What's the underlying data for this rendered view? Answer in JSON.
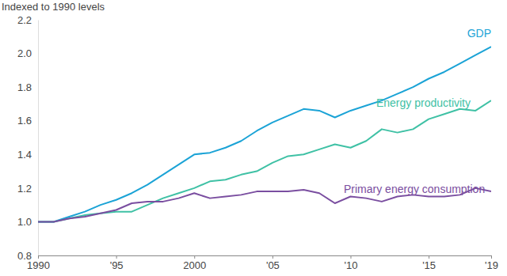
{
  "chart_data": {
    "type": "line",
    "y_label": "Indexed to 1990 levels",
    "x": [
      1990,
      1991,
      1992,
      1993,
      1994,
      1995,
      1996,
      1997,
      1998,
      1999,
      2000,
      2001,
      2002,
      2003,
      2004,
      2005,
      2006,
      2007,
      2008,
      2009,
      2010,
      2011,
      2012,
      2013,
      2014,
      2015,
      2016,
      2017,
      2018,
      2019
    ],
    "series": [
      {
        "name": "GDP",
        "color": "#1ba3d6",
        "values": [
          1.0,
          1.0,
          1.03,
          1.06,
          1.1,
          1.13,
          1.17,
          1.22,
          1.28,
          1.34,
          1.4,
          1.41,
          1.44,
          1.48,
          1.54,
          1.59,
          1.63,
          1.67,
          1.66,
          1.62,
          1.66,
          1.69,
          1.72,
          1.76,
          1.8,
          1.85,
          1.89,
          1.94,
          1.99,
          2.04
        ]
      },
      {
        "name": "Energy productivity",
        "color": "#3fc1a5",
        "values": [
          1.0,
          1.0,
          1.02,
          1.04,
          1.05,
          1.06,
          1.06,
          1.1,
          1.14,
          1.17,
          1.2,
          1.24,
          1.25,
          1.28,
          1.3,
          1.35,
          1.39,
          1.4,
          1.43,
          1.46,
          1.44,
          1.48,
          1.55,
          1.53,
          1.55,
          1.61,
          1.64,
          1.67,
          1.66,
          1.72
        ]
      },
      {
        "name": "Primary energy consumption",
        "color": "#7a4ea0",
        "values": [
          1.0,
          1.0,
          1.02,
          1.03,
          1.05,
          1.07,
          1.11,
          1.12,
          1.12,
          1.14,
          1.17,
          1.14,
          1.15,
          1.16,
          1.18,
          1.18,
          1.18,
          1.19,
          1.17,
          1.11,
          1.15,
          1.14,
          1.12,
          1.15,
          1.16,
          1.15,
          1.15,
          1.16,
          1.2,
          1.18
        ]
      }
    ],
    "xlim": [
      1990,
      2019
    ],
    "ylim": [
      0.8,
      2.2
    ],
    "xticks": [
      {
        "value": 1990,
        "label": "1990"
      },
      {
        "value": 1995,
        "label": "'95"
      },
      {
        "value": 2000,
        "label": "2000"
      },
      {
        "value": 2005,
        "label": "'05"
      },
      {
        "value": 2010,
        "label": "'10"
      },
      {
        "value": 2015,
        "label": "'15"
      },
      {
        "value": 2019,
        "label": "'19"
      }
    ],
    "yticks": [
      {
        "value": 0.8,
        "label": "0.8"
      },
      {
        "value": 1.0,
        "label": "1.0"
      },
      {
        "value": 1.2,
        "label": "1.2"
      },
      {
        "value": 1.4,
        "label": "1.4"
      },
      {
        "value": 1.6,
        "label": "1.6"
      },
      {
        "value": 1.8,
        "label": "1.8"
      },
      {
        "value": 2.0,
        "label": "2.0"
      },
      {
        "value": 2.2,
        "label": "2.2"
      }
    ],
    "grid": false
  }
}
